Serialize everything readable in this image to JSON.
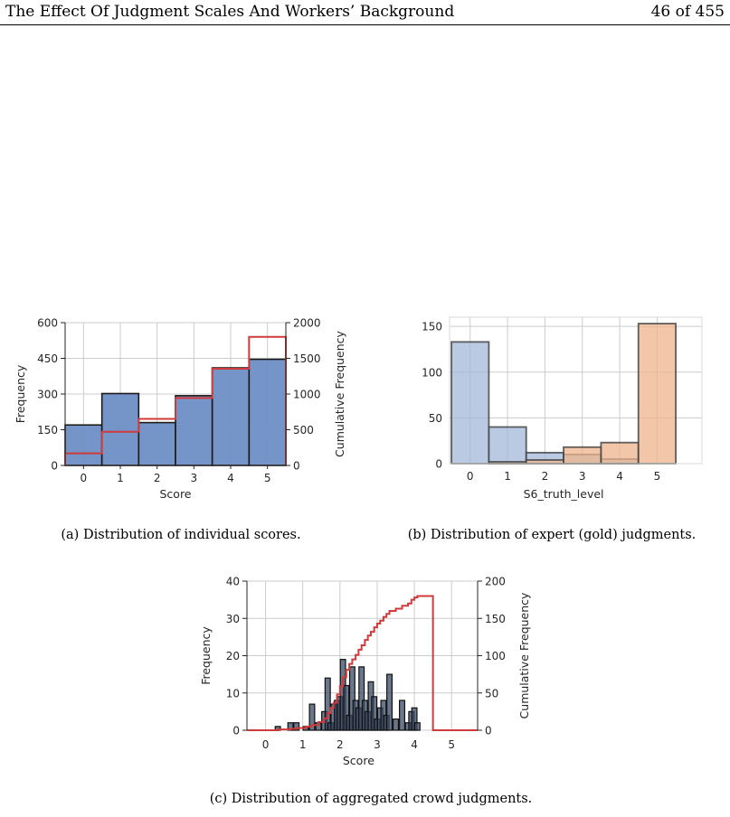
{
  "header": {
    "title": "The Effect Of Judgment Scales And Workers’ Background",
    "page": "46 of 455"
  },
  "colors": {
    "blue": "#6e8ec4",
    "blue_light": "#a3b8da",
    "orange": "#eeb48c",
    "cdf_line": "#d03a3a",
    "dark_bar": "#3a4a63"
  },
  "figures": [
    {
      "id": "a",
      "caption": "(a) Distribution of individual scores.",
      "chart_data": {
        "type": "bar",
        "categories": [
          "0",
          "1",
          "2",
          "3",
          "4",
          "5"
        ],
        "series": [
          {
            "values": [
              170,
              302,
              180,
              293,
              410,
              446
            ]
          },
          {
            "values": [
              170,
              472,
              652,
              945,
              1355,
              1801
            ],
            "axis": "right",
            "style": "step"
          }
        ],
        "xlabel": "Score",
        "ylabel": "Frequency",
        "ylabel_right": "Cumulative Frequency",
        "ylim": [
          0,
          600
        ],
        "ylim_right": [
          0,
          2000
        ],
        "yticks": [
          "0",
          "150",
          "300",
          "450",
          "600"
        ],
        "yticks_right": [
          "0",
          "500",
          "1000",
          "1500",
          "2000"
        ],
        "grid": true
      }
    },
    {
      "id": "b",
      "caption": "(b) Distribution of expert (gold) judgments.",
      "chart_data": {
        "type": "bar",
        "categories": [
          "0",
          "1",
          "2",
          "3",
          "4",
          "5"
        ],
        "series": [
          {
            "values": [
              133,
              40,
              12,
              10,
              5,
              0
            ]
          },
          {
            "values": [
              0,
              2,
              4,
              18,
              23,
              153
            ]
          }
        ],
        "xlabel": "S6_truth_level",
        "ylim": [
          0,
          160
        ],
        "yticks": [
          "0",
          "50",
          "100",
          "150"
        ],
        "grid": true
      }
    },
    {
      "id": "c",
      "caption": "(c) Distribution of aggregated crowd judgments.",
      "chart_data": {
        "type": "bar",
        "x": [
          0.33,
          0.67,
          0.83,
          1.08,
          1.25,
          1.42,
          1.58,
          1.67,
          1.75,
          1.83,
          1.92,
          2.0,
          2.08,
          2.17,
          2.25,
          2.33,
          2.42,
          2.5,
          2.58,
          2.67,
          2.75,
          2.83,
          2.92,
          3.0,
          3.08,
          3.17,
          3.25,
          3.33,
          3.5,
          3.67,
          3.83,
          3.92,
          4.0,
          4.08
        ],
        "values": [
          1,
          2,
          2,
          1,
          7,
          2,
          5,
          14,
          2,
          7,
          8,
          9,
          19,
          12,
          4,
          17,
          8,
          6,
          17,
          8,
          5,
          13,
          9,
          3,
          6,
          8,
          4,
          15,
          3,
          8,
          2,
          5,
          6,
          2
        ],
        "cumulative": {
          "x": [
            0.33,
            0.67,
            0.83,
            1.08,
            1.25,
            1.42,
            1.58,
            1.67,
            1.75,
            1.83,
            1.92,
            2.0,
            2.08,
            2.17,
            2.25,
            2.33,
            2.42,
            2.5,
            2.58,
            2.67,
            2.75,
            2.83,
            2.92,
            3.0,
            3.08,
            3.17,
            3.25,
            3.33,
            3.5,
            3.67,
            3.83,
            3.92,
            4.0,
            4.08,
            4.5
          ],
          "values": [
            1,
            2,
            3,
            5,
            7,
            11,
            16,
            23,
            30,
            37,
            48,
            59,
            71,
            81,
            89,
            95,
            101,
            108,
            114,
            121,
            127,
            132,
            138,
            143,
            147,
            152,
            156,
            160,
            163,
            167,
            170,
            175,
            178,
            180,
            180
          ]
        },
        "xlabel": "Score",
        "ylabel": "Frequency",
        "ylabel_right": "Cumulative Frequency",
        "xticks": [
          "0",
          "1",
          "2",
          "3",
          "4",
          "5"
        ],
        "ylim": [
          0,
          40
        ],
        "ylim_right": [
          0,
          200
        ],
        "yticks": [
          "0",
          "10",
          "20",
          "30",
          "40"
        ],
        "yticks_right": [
          "0",
          "50",
          "100",
          "150",
          "200"
        ],
        "grid": true
      }
    }
  ]
}
